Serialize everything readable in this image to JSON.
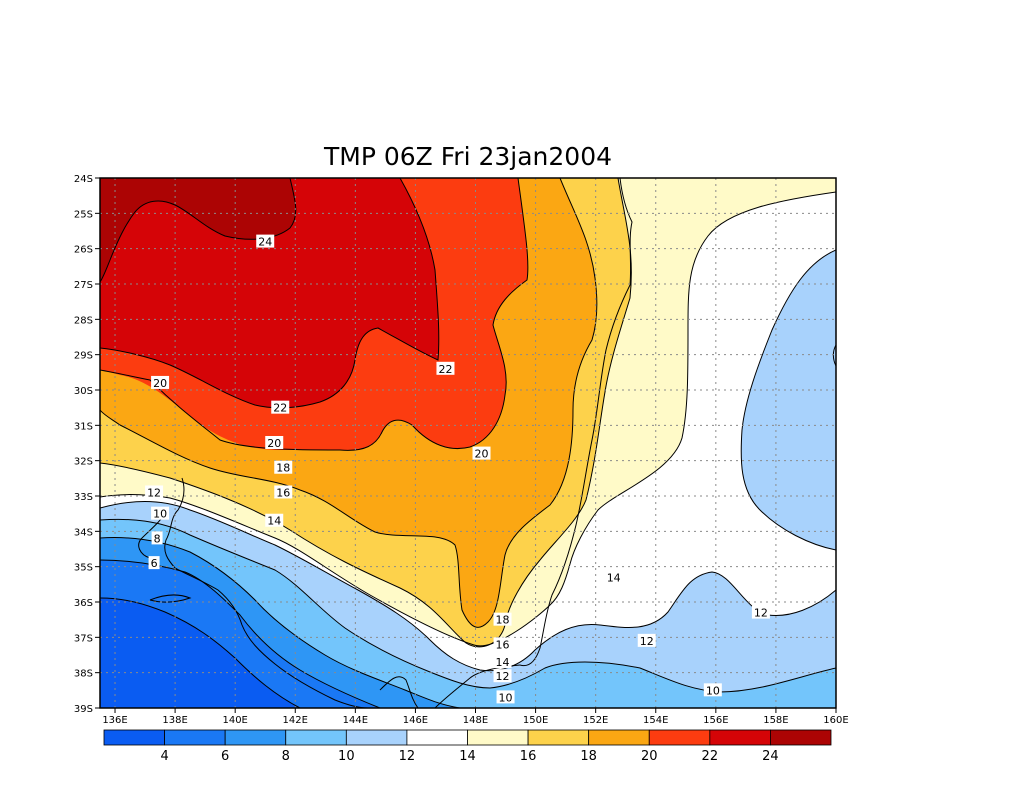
{
  "chart_data": {
    "type": "heatmap",
    "title": "TMP 06Z Fri 23jan2004",
    "variable": "TMP",
    "xlabel": "",
    "ylabel": "",
    "x_ticks": [
      "136E",
      "138E",
      "140E",
      "142E",
      "144E",
      "146E",
      "148E",
      "150E",
      "152E",
      "154E",
      "156E",
      "158E",
      "160E"
    ],
    "y_ticks": [
      "24S",
      "25S",
      "26S",
      "27S",
      "28S",
      "29S",
      "30S",
      "31S",
      "32S",
      "33S",
      "34S",
      "35S",
      "36S",
      "37S",
      "38S",
      "39S"
    ],
    "xlim": [
      135.5,
      160
    ],
    "ylim": [
      -39,
      -24
    ],
    "grid": true,
    "colorbar": {
      "position": "bottom",
      "levels": [
        "4",
        "6",
        "8",
        "10",
        "12",
        "14",
        "16",
        "18",
        "20",
        "22",
        "24"
      ],
      "colors": [
        "#0a5cf2",
        "#1a78f5",
        "#2e96f5",
        "#73c5fb",
        "#a8d2fc",
        "#ffffff",
        "#fffac8",
        "#fdd24b",
        "#fba713",
        "#fc3c10",
        "#d50407",
        "#ac0404"
      ]
    },
    "bands": [
      {
        "min": 22,
        "max": 24,
        "color": "#d50407"
      },
      {
        "min": 24,
        "max": 26,
        "color": "#ac0404"
      },
      {
        "min": 20,
        "max": 22,
        "color": "#fc3c10"
      },
      {
        "min": 18,
        "max": 20,
        "color": "#fba713"
      },
      {
        "min": 16,
        "max": 18,
        "color": "#fdd24b"
      },
      {
        "min": 14,
        "max": 16,
        "color": "#fffac8"
      },
      {
        "min": 12,
        "max": 14,
        "color": "#ffffff"
      },
      {
        "min": 10,
        "max": 12,
        "color": "#a8d2fc"
      },
      {
        "min": 8,
        "max": 10,
        "color": "#73c5fb"
      },
      {
        "min": 6,
        "max": 8,
        "color": "#2e96f5"
      },
      {
        "min": 4,
        "max": 6,
        "color": "#1a78f5"
      },
      {
        "min": 0,
        "max": 4,
        "color": "#0a5cf2"
      }
    ],
    "contour_labels": [
      {
        "text": "24",
        "lon": 141.0,
        "lat": -25.8
      },
      {
        "text": "22",
        "lon": 147.0,
        "lat": -29.4
      },
      {
        "text": "22",
        "lon": 141.5,
        "lat": -30.5
      },
      {
        "text": "20",
        "lon": 137.5,
        "lat": -29.8
      },
      {
        "text": "20",
        "lon": 141.3,
        "lat": -31.5
      },
      {
        "text": "20",
        "lon": 148.2,
        "lat": -31.8
      },
      {
        "text": "18",
        "lon": 141.6,
        "lat": -32.2
      },
      {
        "text": "16",
        "lon": 141.6,
        "lat": -32.9
      },
      {
        "text": "14",
        "lon": 141.3,
        "lat": -33.7
      },
      {
        "text": "12",
        "lon": 137.3,
        "lat": -32.9
      },
      {
        "text": "10",
        "lon": 137.5,
        "lat": -33.5
      },
      {
        "text": "8",
        "lon": 137.4,
        "lat": -34.2
      },
      {
        "text": "6",
        "lon": 137.3,
        "lat": -34.9
      },
      {
        "text": "18",
        "lon": 148.9,
        "lat": -36.5
      },
      {
        "text": "16",
        "lon": 148.9,
        "lat": -37.2
      },
      {
        "text": "14",
        "lon": 148.9,
        "lat": -37.7
      },
      {
        "text": "12",
        "lon": 148.9,
        "lat": -38.1
      },
      {
        "text": "10",
        "lon": 149.0,
        "lat": -38.7
      },
      {
        "text": "14",
        "lon": 152.6,
        "lat": -35.3
      },
      {
        "text": "12",
        "lon": 153.7,
        "lat": -37.1
      },
      {
        "text": "12",
        "lon": 157.5,
        "lat": -36.3
      },
      {
        "text": "10",
        "lon": 155.9,
        "lat": -38.5
      }
    ]
  }
}
